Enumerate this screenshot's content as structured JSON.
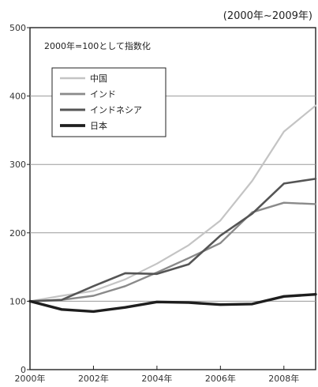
{
  "chart_data": {
    "type": "line",
    "period_label": "(2000年~2009年)",
    "note": "2000年=100として指数化",
    "x": [
      2000,
      2001,
      2002,
      2003,
      2004,
      2005,
      2006,
      2007,
      2008,
      2009
    ],
    "xticks": [
      2000,
      2002,
      2004,
      2006,
      2008
    ],
    "xtick_labels": [
      "2000年",
      "2002年",
      "2004年",
      "2006年",
      "2008年"
    ],
    "xlim": [
      2000,
      2009
    ],
    "ylim": [
      0,
      500
    ],
    "yticks": [
      0,
      100,
      200,
      300,
      400,
      500
    ],
    "grid": "horizontal",
    "legend_position": "top-left",
    "series": [
      {
        "name": "中国",
        "color": "#c4c4c4",
        "width": 2.2,
        "values": [
          100,
          108,
          115,
          132,
          155,
          182,
          218,
          276,
          348,
          386
        ]
      },
      {
        "name": "インド",
        "color": "#8a8a8a",
        "width": 2.4,
        "values": [
          100,
          102,
          108,
          122,
          142,
          163,
          185,
          230,
          244,
          242
        ]
      },
      {
        "name": "インドネシア",
        "color": "#555555",
        "width": 2.6,
        "values": [
          100,
          102,
          122,
          141,
          140,
          154,
          196,
          228,
          272,
          279
        ]
      },
      {
        "name": "日本",
        "color": "#1e1e1e",
        "width": 3.4,
        "values": [
          100,
          88,
          85,
          91,
          99,
          98,
          95,
          96,
          107,
          110
        ]
      }
    ]
  }
}
